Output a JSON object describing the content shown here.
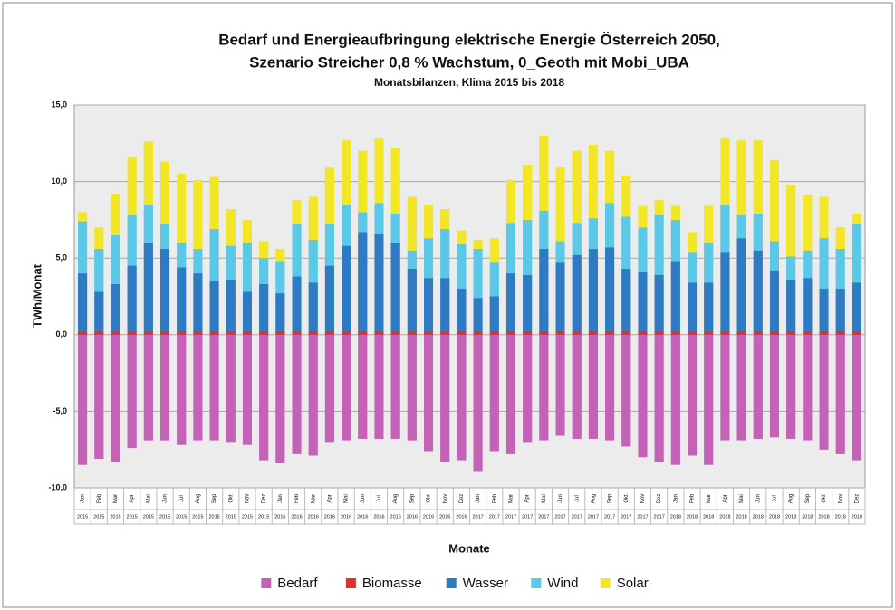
{
  "chart_data": {
    "type": "stacked_bar",
    "title": [
      "Bedarf und Energieaufbringung elektrische Energie Österreich 2050,",
      "Szenario Streicher 0,8 % Wachstum, 0_Geoth mit Mobi_UBA"
    ],
    "subtitle": "Monatsbilanzen, Klima 2015 bis 2018",
    "y_label": "TWh/Monat",
    "x_label": "Monate",
    "categories": [
      "Jan",
      "Feb",
      "Mar",
      "Apr",
      "Mai",
      "Jun",
      "Jul",
      "Aug",
      "Sep",
      "Okt",
      "Nov",
      "Dez",
      "Jan",
      "Feb",
      "Mar",
      "Apr",
      "Mai",
      "Jun",
      "Jul",
      "Aug",
      "Sep",
      "Okt",
      "Nov",
      "Dez",
      "Jan",
      "Feb",
      "Mar",
      "Apr",
      "Mai",
      "Jun",
      "Jul",
      "Aug",
      "Sep",
      "Okt",
      "Nov",
      "Dez",
      "Jan",
      "Feb",
      "Mar",
      "Apr",
      "Mai",
      "Jun",
      "Jul",
      "Aug",
      "Sep",
      "Okt",
      "Nov",
      "Dez"
    ],
    "category_years": [
      "2015",
      "2015",
      "2015",
      "2015",
      "2015",
      "2015",
      "2015",
      "2015",
      "2015",
      "2015",
      "2015",
      "2015",
      "2016",
      "2016",
      "2016",
      "2016",
      "2016",
      "2016",
      "2016",
      "2016",
      "2016",
      "2016",
      "2016",
      "2016",
      "2017",
      "2017",
      "2017",
      "2017",
      "2017",
      "2017",
      "2017",
      "2017",
      "2017",
      "2017",
      "2017",
      "2017",
      "2018",
      "2018",
      "2018",
      "2018",
      "2018",
      "2018",
      "2018",
      "2018",
      "2018",
      "2018",
      "2018",
      "2018"
    ],
    "series": [
      {
        "name": "Bedarf",
        "color": "#c462b8",
        "values": [
          -8.5,
          -8.1,
          -8.3,
          -7.4,
          -6.9,
          -6.9,
          -7.2,
          -6.9,
          -6.9,
          -7.0,
          -7.2,
          -8.2,
          -8.4,
          -7.8,
          -7.9,
          -7.0,
          -6.9,
          -6.8,
          -6.8,
          -6.8,
          -6.9,
          -7.6,
          -8.3,
          -8.2,
          -8.9,
          -7.6,
          -7.8,
          -7.0,
          -6.9,
          -6.6,
          -6.8,
          -6.8,
          -6.9,
          -7.3,
          -8.0,
          -8.3,
          -8.5,
          -7.9,
          -8.5,
          -6.9,
          -6.9,
          -6.8,
          -6.7,
          -6.8,
          -6.9,
          -7.5,
          -7.8,
          -8.2
        ]
      },
      {
        "name": "Biomasse",
        "color": "#d9342b",
        "values": [
          0.2,
          0.2,
          0.2,
          0.2,
          0.2,
          0.2,
          0.2,
          0.2,
          0.2,
          0.2,
          0.2,
          0.2,
          0.2,
          0.2,
          0.2,
          0.2,
          0.2,
          0.2,
          0.2,
          0.2,
          0.2,
          0.2,
          0.2,
          0.2,
          0.2,
          0.2,
          0.2,
          0.2,
          0.2,
          0.2,
          0.2,
          0.2,
          0.2,
          0.2,
          0.2,
          0.2,
          0.2,
          0.2,
          0.2,
          0.2,
          0.2,
          0.2,
          0.2,
          0.2,
          0.2,
          0.2,
          0.2,
          0.2
        ]
      },
      {
        "name": "Wasser",
        "color": "#2e7bc4",
        "values": [
          3.8,
          2.6,
          3.1,
          4.3,
          5.8,
          5.4,
          4.2,
          3.8,
          3.3,
          3.4,
          2.6,
          3.1,
          2.5,
          3.6,
          3.2,
          4.3,
          5.6,
          6.5,
          6.4,
          5.8,
          4.1,
          3.5,
          3.5,
          2.8,
          2.2,
          2.3,
          3.8,
          3.7,
          5.4,
          4.5,
          5.0,
          5.4,
          5.5,
          4.1,
          3.9,
          3.7,
          4.6,
          3.2,
          3.2,
          5.2,
          6.1,
          5.3,
          4.0,
          3.4,
          3.5,
          2.8,
          2.8,
          3.2
        ]
      },
      {
        "name": "Wind",
        "color": "#5ac8e6",
        "values": [
          3.4,
          2.8,
          3.2,
          3.3,
          2.5,
          1.6,
          1.6,
          1.6,
          3.4,
          2.2,
          3.2,
          1.7,
          2.1,
          3.4,
          2.8,
          2.7,
          2.7,
          1.3,
          2.0,
          1.9,
          1.2,
          2.6,
          3.2,
          2.9,
          3.2,
          2.2,
          3.3,
          3.6,
          2.5,
          1.4,
          2.1,
          2.0,
          2.9,
          3.4,
          2.9,
          3.9,
          2.7,
          2.0,
          2.6,
          3.1,
          1.5,
          2.4,
          1.9,
          1.5,
          1.8,
          3.3,
          2.6,
          3.8
        ]
      },
      {
        "name": "Solar",
        "color": "#f2e626",
        "values": [
          0.6,
          1.4,
          2.7,
          3.8,
          4.1,
          4.1,
          4.5,
          4.5,
          3.4,
          2.4,
          1.5,
          1.1,
          0.8,
          1.6,
          2.8,
          3.7,
          4.2,
          4.0,
          4.2,
          4.3,
          3.5,
          2.2,
          1.3,
          0.9,
          0.6,
          1.6,
          2.8,
          3.6,
          4.9,
          4.8,
          4.7,
          4.8,
          3.4,
          2.7,
          1.4,
          1.0,
          0.9,
          1.3,
          2.4,
          4.3,
          4.9,
          4.8,
          5.3,
          4.7,
          3.6,
          2.7,
          1.4,
          0.7
        ]
      }
    ],
    "ylim": [
      -10,
      15
    ],
    "yticks": [
      {
        "value": -10,
        "label": "-10,0"
      },
      {
        "value": -5,
        "label": "-5,0"
      },
      {
        "value": 0,
        "label": "0,0"
      },
      {
        "value": 5,
        "label": "5,0"
      },
      {
        "value": 10,
        "label": "10,0"
      },
      {
        "value": 15,
        "label": "15,0"
      }
    ],
    "grid": true
  }
}
